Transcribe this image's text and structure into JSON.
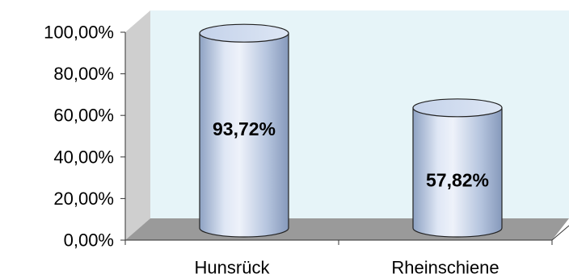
{
  "chart_data": {
    "type": "bar",
    "style": "3d-cylinder",
    "categories": [
      "Hunsrück",
      "Rheinschiene"
    ],
    "values": [
      93.72,
      57.82
    ],
    "data_labels": [
      "93,72%",
      "57,82%"
    ],
    "yticks": [
      "0,00%",
      "20,00%",
      "40,00%",
      "60,00%",
      "80,00%",
      "100,00%"
    ],
    "ylim": [
      0,
      100
    ],
    "title": "",
    "xlabel": "",
    "ylabel": "",
    "grid": false,
    "legend": "none",
    "colors": {
      "back_wall": "#e6f4f8",
      "side_wall": "#cfcfcf",
      "floor": "#9a9a9a",
      "bar_body_light": "#e4ebf7",
      "bar_body_dark": "#93a7c7",
      "bar_top": "#d3def0"
    }
  }
}
